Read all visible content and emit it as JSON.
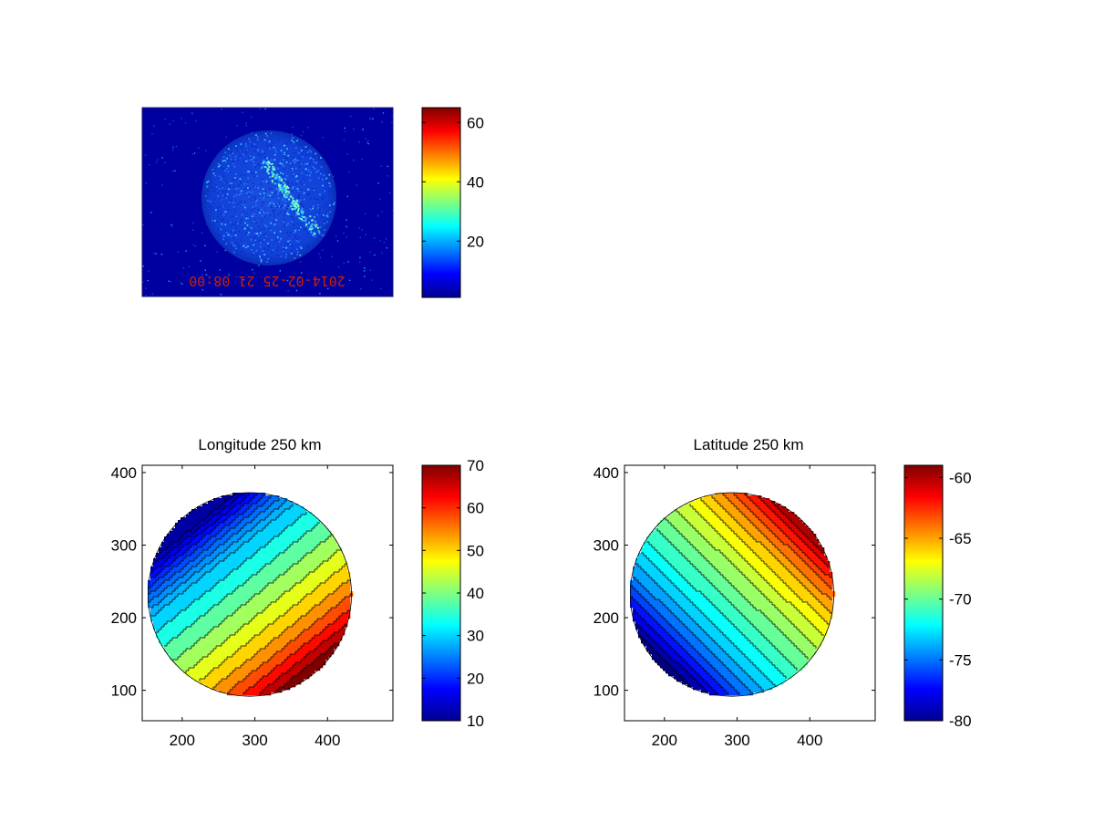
{
  "figure": {
    "background": "#ffffff",
    "colormap": "jet"
  },
  "chart_data": [
    {
      "type": "heatmap",
      "name": "camera-image",
      "title": "",
      "image_type": "all-sky camera frame",
      "embedded_text": "2014-02-25 21 08:00",
      "embedded_text_color": "#c82000",
      "background_color": "#0000a0",
      "colorbar": {
        "min": 1,
        "max": 65,
        "ticks": [
          20,
          40,
          60
        ]
      }
    },
    {
      "type": "heatmap",
      "name": "longitude-map",
      "title": "Longitude 250 km",
      "xlim": [
        145,
        490
      ],
      "ylim": [
        58,
        410
      ],
      "xticks": [
        200,
        300,
        400
      ],
      "yticks": [
        100,
        200,
        300,
        400
      ],
      "disk": {
        "cx": 293,
        "cy": 232,
        "r": 140
      },
      "contour_levels": [
        12,
        14,
        16,
        18,
        20,
        22,
        24,
        26,
        28,
        30,
        34,
        38,
        42,
        46,
        50,
        54,
        58,
        62,
        66,
        70
      ],
      "colorbar": {
        "min": 10,
        "max": 70,
        "ticks": [
          10,
          20,
          30,
          40,
          50,
          60,
          70
        ]
      }
    },
    {
      "type": "heatmap",
      "name": "latitude-map",
      "title": "Latitude 250 km",
      "xlim": [
        145,
        490
      ],
      "ylim": [
        58,
        410
      ],
      "xticks": [
        200,
        300,
        400
      ],
      "yticks": [
        100,
        200,
        300,
        400
      ],
      "disk": {
        "cx": 293,
        "cy": 232,
        "r": 140
      },
      "contour_levels": [
        -80,
        -79,
        -78,
        -77,
        -76,
        -75,
        -74,
        -73,
        -72,
        -71,
        -70,
        -69,
        -68,
        -67,
        -66,
        -65,
        -64,
        -63,
        -62,
        -61,
        -60
      ],
      "colorbar": {
        "min": -80,
        "max": -59,
        "ticks": [
          -80,
          -75,
          -70,
          -65,
          -60
        ]
      }
    }
  ]
}
